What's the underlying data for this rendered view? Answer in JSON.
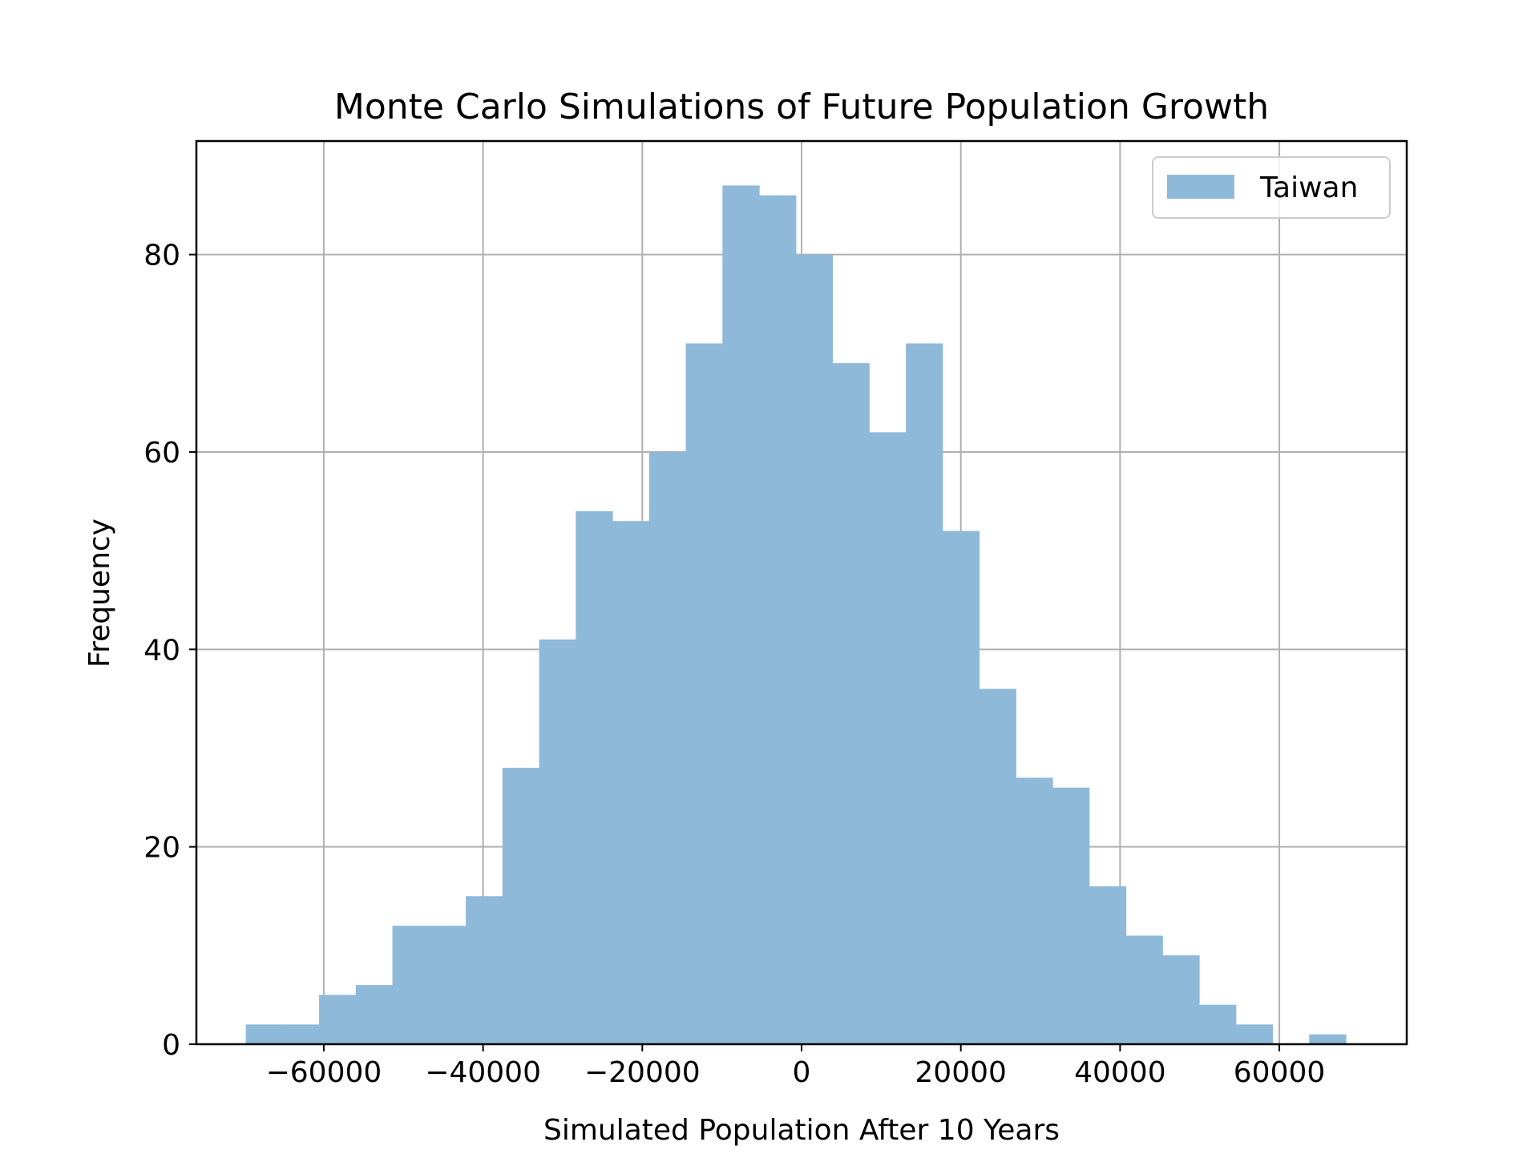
{
  "chart_data": {
    "type": "bar",
    "title": "Monte Carlo Simulations of Future Population Growth",
    "xlabel": "Simulated Population After 10 Years",
    "ylabel": "Frequency",
    "xlim": [
      -76000,
      76000
    ],
    "ylim": [
      0,
      91.5
    ],
    "xticks": [
      -60000,
      -40000,
      -20000,
      0,
      20000,
      40000,
      60000
    ],
    "xtick_labels": [
      "−60000",
      "−40000",
      "−20000",
      "0",
      "20000",
      "40000",
      "60000"
    ],
    "yticks": [
      0,
      20,
      40,
      60,
      80
    ],
    "ytick_labels": [
      "0",
      "20",
      "40",
      "60",
      "80"
    ],
    "grid": true,
    "legend_position": "top-right",
    "bar_color": "#8fb9d9",
    "series": [
      {
        "name": "Taiwan",
        "bin_start": -69800,
        "bin_width": 4605,
        "values": [
          2,
          2,
          5,
          6,
          12,
          12,
          15,
          28,
          41,
          54,
          53,
          60,
          71,
          87,
          86,
          80,
          69,
          62,
          71,
          52,
          36,
          27,
          26,
          16,
          11,
          9,
          4,
          2,
          0,
          1
        ]
      }
    ]
  }
}
